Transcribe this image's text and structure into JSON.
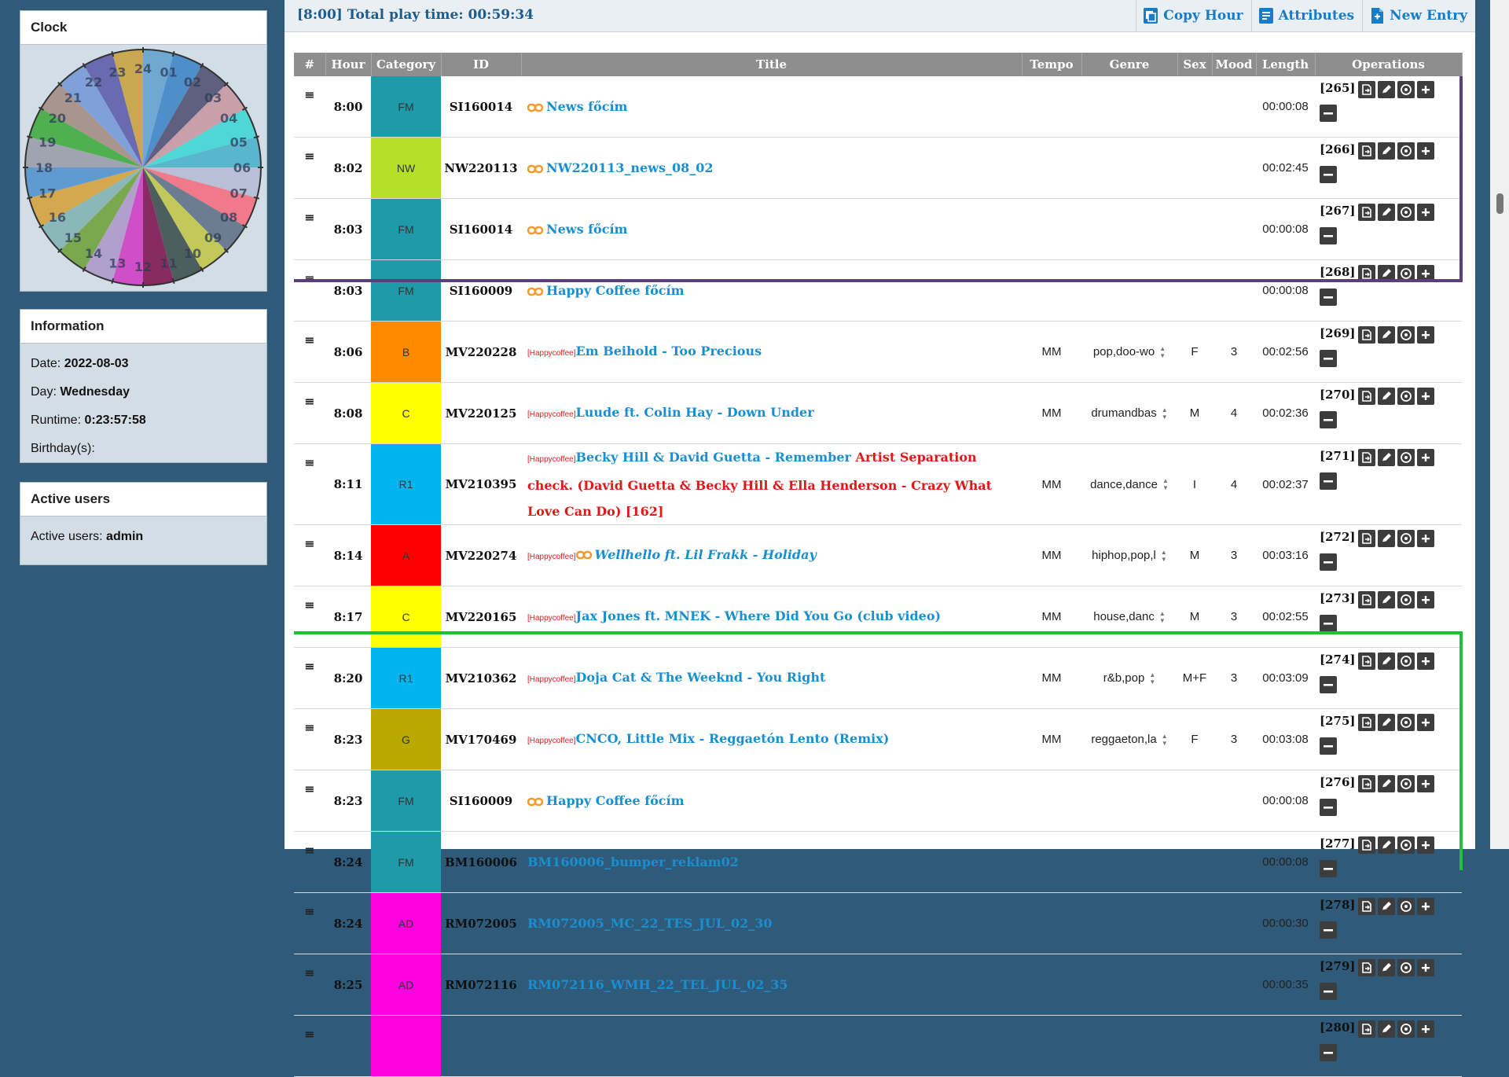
{
  "sidebar": {
    "clock": {
      "title": "Clock",
      "numbers": [
        "24",
        "01",
        "02",
        "03",
        "04",
        "05",
        "06",
        "07",
        "08",
        "09",
        "10",
        "11",
        "12",
        "13",
        "14",
        "15",
        "16",
        "17",
        "18",
        "19",
        "20",
        "21",
        "22",
        "23"
      ],
      "segment_colors": [
        "#6fa8d0",
        "#4f8fc9",
        "#5f5f7f",
        "#c9a0aa",
        "#4fd6d6",
        "#5ab6cc",
        "#b8bfd6",
        "#f07a8a",
        "#6c7d92",
        "#c2c95a",
        "#4d5e5e",
        "#8a2a62",
        "#d04fc8",
        "#b2a0cc",
        "#7aa84f",
        "#8ab8b8",
        "#d4a84f",
        "#5f9bd0",
        "#a0a4b0",
        "#4fb04f",
        "#a8958e",
        "#7fa0d8",
        "#6a6ab0",
        "#c8a850"
      ]
    },
    "info": {
      "title": "Information",
      "date_label": "Date:",
      "date_value": "2022-08-03",
      "day_label": "Day:",
      "day_value": "Wednesday",
      "runtime_label": "Runtime:",
      "runtime_value": "0:23:57:58",
      "birthday_label": "Birthday(s):"
    },
    "users": {
      "title": "Active users",
      "label": "Active users:",
      "value": "admin"
    }
  },
  "topbar": {
    "title": "[8:00] Total play time: 00:59:34",
    "copy_hour": "Copy Hour",
    "attributes": "Attributes",
    "new_entry": "New Entry"
  },
  "table": {
    "headers": {
      "num": "#",
      "hour": "Hour",
      "category": "Category",
      "id": "ID",
      "title": "Title",
      "tempo": "Tempo",
      "genre": "Genre",
      "sex": "Sex",
      "mood": "Mood",
      "length": "Length",
      "ops": "Operations"
    },
    "rows": [
      {
        "hour": "8:00",
        "cat": "FM",
        "cat_color": "#1e9aa8",
        "id": "SI160014",
        "tag": "",
        "title": "News főcím",
        "warn": "",
        "linked": true,
        "italic": false,
        "tempo": "",
        "genre": "",
        "sex": "",
        "mood": "",
        "length": "00:00:08",
        "num": "[265]"
      },
      {
        "hour": "8:02",
        "cat": "NW",
        "cat_color": "#b5e02a",
        "id": "NW220113",
        "tag": "",
        "title": "NW220113_news_08_02",
        "warn": "",
        "linked": true,
        "italic": false,
        "tempo": "",
        "genre": "",
        "sex": "",
        "mood": "",
        "length": "00:02:45",
        "num": "[266]"
      },
      {
        "hour": "8:03",
        "cat": "FM",
        "cat_color": "#1e9aa8",
        "id": "SI160014",
        "tag": "",
        "title": "News főcím",
        "warn": "",
        "linked": true,
        "italic": false,
        "tempo": "",
        "genre": "",
        "sex": "",
        "mood": "",
        "length": "00:00:08",
        "num": "[267]"
      },
      {
        "hour": "8:03",
        "cat": "FM",
        "cat_color": "#1e9aa8",
        "id": "SI160009",
        "tag": "",
        "title": "Happy Coffee főcím",
        "warn": "",
        "linked": true,
        "italic": false,
        "tempo": "",
        "genre": "",
        "sex": "",
        "mood": "",
        "length": "00:00:08",
        "num": "[268]"
      },
      {
        "hour": "8:06",
        "cat": "B",
        "cat_color": "#ff8a00",
        "id": "MV220228",
        "tag": "[Happycoffee]",
        "title": "Em Beihold - Too Precious",
        "warn": "",
        "linked": false,
        "italic": false,
        "tempo": "MM",
        "genre": "pop,doo-wo",
        "sex": "F",
        "mood": "3",
        "length": "00:02:56",
        "num": "[269]"
      },
      {
        "hour": "8:08",
        "cat": "C",
        "cat_color": "#ffff00",
        "id": "MV220125",
        "tag": "[Happycoffee]",
        "title": "Luude ft. Colin Hay - Down Under",
        "warn": "",
        "linked": false,
        "italic": false,
        "tempo": "MM",
        "genre": "drumandbas",
        "sex": "M",
        "mood": "4",
        "length": "00:02:36",
        "num": "[270]"
      },
      {
        "hour": "8:11",
        "cat": "R1",
        "cat_color": "#00b4f0",
        "id": "MV210395",
        "tag": "[Happycoffee]",
        "title": "Becky Hill & David Guetta - Remember",
        "warn": "Artist Separation check. (David Guetta & Becky Hill & Ella Henderson - Crazy What Love Can Do) [162]",
        "linked": false,
        "italic": false,
        "tempo": "MM",
        "genre": "dance,dance",
        "sex": "I",
        "mood": "4",
        "length": "00:02:37",
        "num": "[271]"
      },
      {
        "hour": "8:14",
        "cat": "A",
        "cat_color": "#ff0000",
        "id": "MV220274",
        "tag": "[Happycoffee]",
        "title": "Wellhello ft. Lil Frakk - Holiday",
        "warn": "",
        "linked": true,
        "italic": true,
        "tempo": "MM",
        "genre": "hiphop,pop,l",
        "sex": "M",
        "mood": "3",
        "length": "00:03:16",
        "num": "[272]"
      },
      {
        "hour": "8:17",
        "cat": "C",
        "cat_color": "#ffff00",
        "id": "MV220165",
        "tag": "[Happycoffee]",
        "title": "Jax Jones ft. MNEK - Where Did You Go (club video)",
        "warn": "",
        "linked": false,
        "italic": false,
        "tempo": "MM",
        "genre": "house,danc",
        "sex": "M",
        "mood": "3",
        "length": "00:02:55",
        "num": "[273]"
      },
      {
        "hour": "8:20",
        "cat": "R1",
        "cat_color": "#00b4f0",
        "id": "MV210362",
        "tag": "[Happycoffee]",
        "title": "Doja Cat & The Weeknd - You Right",
        "warn": "",
        "linked": false,
        "italic": false,
        "tempo": "MM",
        "genre": "r&b,pop",
        "sex": "M+F",
        "mood": "3",
        "length": "00:03:09",
        "num": "[274]"
      },
      {
        "hour": "8:23",
        "cat": "G",
        "cat_color": "#b8a800",
        "id": "MV170469",
        "tag": "[Happycoffee]",
        "title": "CNCO, Little Mix - Reggaetón Lento (Remix)",
        "warn": "",
        "linked": false,
        "italic": false,
        "tempo": "MM",
        "genre": "reggaeton,la",
        "sex": "F",
        "mood": "3",
        "length": "00:03:08",
        "num": "[275]"
      },
      {
        "hour": "8:23",
        "cat": "FM",
        "cat_color": "#1e9aa8",
        "id": "SI160009",
        "tag": "",
        "title": "Happy Coffee főcím",
        "warn": "",
        "linked": true,
        "italic": false,
        "tempo": "",
        "genre": "",
        "sex": "",
        "mood": "",
        "length": "00:00:08",
        "num": "[276]"
      },
      {
        "hour": "8:24",
        "cat": "FM",
        "cat_color": "#1e9aa8",
        "id": "BM160006",
        "tag": "",
        "title": "BM160006_bumper_reklam02",
        "warn": "",
        "linked": false,
        "italic": false,
        "tempo": "",
        "genre": "",
        "sex": "",
        "mood": "",
        "length": "00:00:08",
        "num": "[277]"
      },
      {
        "hour": "8:24",
        "cat": "AD",
        "cat_color": "#ff00e0",
        "id": "RM072005",
        "tag": "",
        "title": "RM072005_MC_22_TES_JUL_02_30",
        "warn": "",
        "linked": false,
        "italic": false,
        "tempo": "",
        "genre": "",
        "sex": "",
        "mood": "",
        "length": "00:00:30",
        "num": "[278]"
      },
      {
        "hour": "8:25",
        "cat": "AD",
        "cat_color": "#ff00e0",
        "id": "RM072116",
        "tag": "",
        "title": "RM072116_WMH_22_TEL_JUL_02_35",
        "warn": "",
        "linked": false,
        "italic": false,
        "tempo": "",
        "genre": "",
        "sex": "",
        "mood": "",
        "length": "00:00:35",
        "num": "[279]"
      },
      {
        "hour": "",
        "cat": "",
        "cat_color": "#ff00e0",
        "id": "",
        "tag": "",
        "title": "",
        "warn": "",
        "linked": false,
        "italic": false,
        "tempo": "",
        "genre": "",
        "sex": "",
        "mood": "",
        "length": "",
        "num": "[280]"
      }
    ]
  }
}
